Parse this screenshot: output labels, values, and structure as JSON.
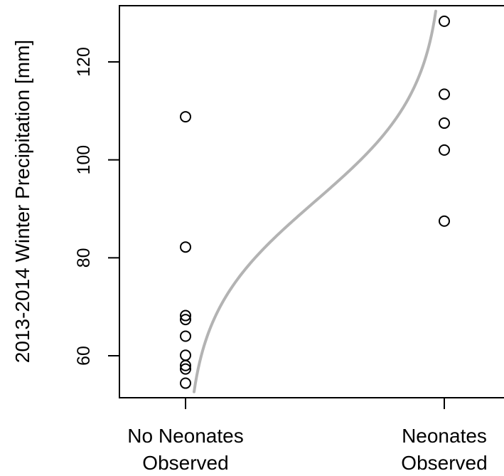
{
  "chart_data": {
    "type": "scatter",
    "title": "",
    "xlabel": "",
    "ylabel": "2013-2014 Winter Precipitation [mm]",
    "ylim": [
      51.4,
      131.5
    ],
    "yticks": [
      60,
      80,
      100,
      120
    ],
    "grid": false,
    "legend": "none",
    "categories": [
      {
        "line1": "No Neonates",
        "line2": "Observed",
        "value": 0
      },
      {
        "line1": "Neonates",
        "line2": "Observed",
        "value": 1
      }
    ],
    "series": [
      {
        "marker": "open-circle",
        "points": [
          {
            "x": 0,
            "y": 108.8
          },
          {
            "x": 0,
            "y": 82.2
          },
          {
            "x": 0,
            "y": 68.2
          },
          {
            "x": 0,
            "y": 67.4
          },
          {
            "x": 0,
            "y": 64.0
          },
          {
            "x": 0,
            "y": 60.1
          },
          {
            "x": 0,
            "y": 58.0
          },
          {
            "x": 0,
            "y": 57.3
          },
          {
            "x": 0,
            "y": 54.4
          },
          {
            "x": 1,
            "y": 128.3
          },
          {
            "x": 1,
            "y": 113.4
          },
          {
            "x": 1,
            "y": 107.5
          },
          {
            "x": 1,
            "y": 102.0
          },
          {
            "x": 1,
            "y": 87.5
          }
        ]
      }
    ],
    "fit_curve": {
      "type": "logistic",
      "color": "#b3b3b3",
      "midpoint_y": 91.5,
      "scale_y": 11.5
    },
    "colors": {
      "marker": "#000000",
      "axis": "#000000",
      "curve": "#b3b3b3",
      "background": "#ffffff"
    }
  }
}
